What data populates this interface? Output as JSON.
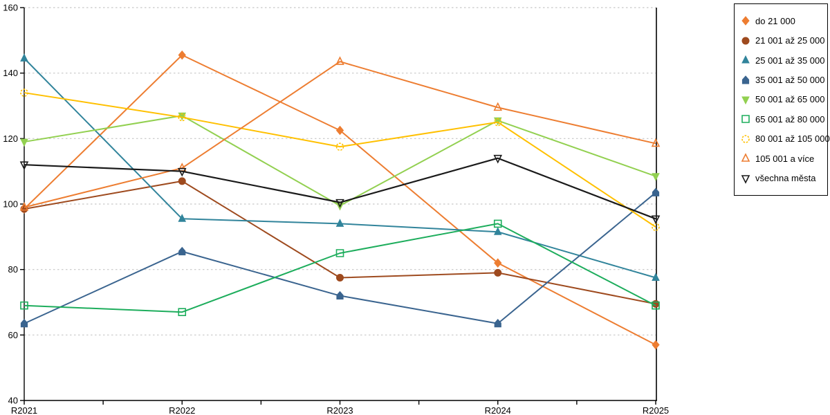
{
  "chart_data": {
    "type": "line",
    "title": "",
    "xlabel": "",
    "ylabel": "",
    "categories": [
      "R2021",
      "R2022",
      "R2023",
      "R2024",
      "R2025"
    ],
    "ylim": [
      40,
      160
    ],
    "yticks": [
      40,
      60,
      80,
      100,
      120,
      140,
      160
    ],
    "grid": "horizontal-dashed",
    "legend_position": "right-outside",
    "colors": {
      "axis": "#000000",
      "gridline": "#c6c6c6",
      "background": "#ffffff"
    },
    "series": [
      {
        "name": "do 21 000",
        "color": "#ED7D31",
        "marker": "diamond",
        "marker_style": "filled",
        "values": [
          98.5,
          145.5,
          122.5,
          82,
          57
        ]
      },
      {
        "name": "21 001 až 25 000",
        "color": "#9E4A1E",
        "marker": "circle",
        "marker_style": "filled",
        "values": [
          98.5,
          107,
          77.5,
          79,
          69.5
        ]
      },
      {
        "name": "25 001 až 35 000",
        "color": "#31849B",
        "marker": "triangle-up",
        "marker_style": "filled",
        "values": [
          144.5,
          95.5,
          94,
          91.5,
          77.5
        ]
      },
      {
        "name": "35 001 až 50 000",
        "color": "#3A648F",
        "marker": "pentagon",
        "marker_style": "filled",
        "values": [
          63.5,
          85.5,
          72,
          63.5,
          103.5
        ]
      },
      {
        "name": "50 001 až 65 000",
        "color": "#92D050",
        "marker": "triangle-down",
        "marker_style": "filled",
        "values": [
          119,
          127,
          99.5,
          125.5,
          108.5
        ]
      },
      {
        "name": "65 001 až 80 000",
        "color": "#1DAD5C",
        "marker": "square",
        "marker_style": "open",
        "values": [
          69,
          67,
          85,
          94,
          69
        ]
      },
      {
        "name": "80 001 až 105 000",
        "color": "#FFC000",
        "marker": "circle-dashed",
        "marker_style": "open",
        "values": [
          134,
          126.5,
          117.5,
          125,
          93
        ]
      },
      {
        "name": "105 001 a více",
        "color": "#ED7D31",
        "marker": "triangle-up",
        "marker_style": "open",
        "values": [
          99,
          111,
          143.5,
          129.5,
          118.5
        ]
      },
      {
        "name": "všechna města",
        "color": "#1A1A1A",
        "marker": "triangle-down",
        "marker_style": "open",
        "values": [
          112,
          110,
          100.5,
          114,
          95.5
        ]
      }
    ]
  }
}
